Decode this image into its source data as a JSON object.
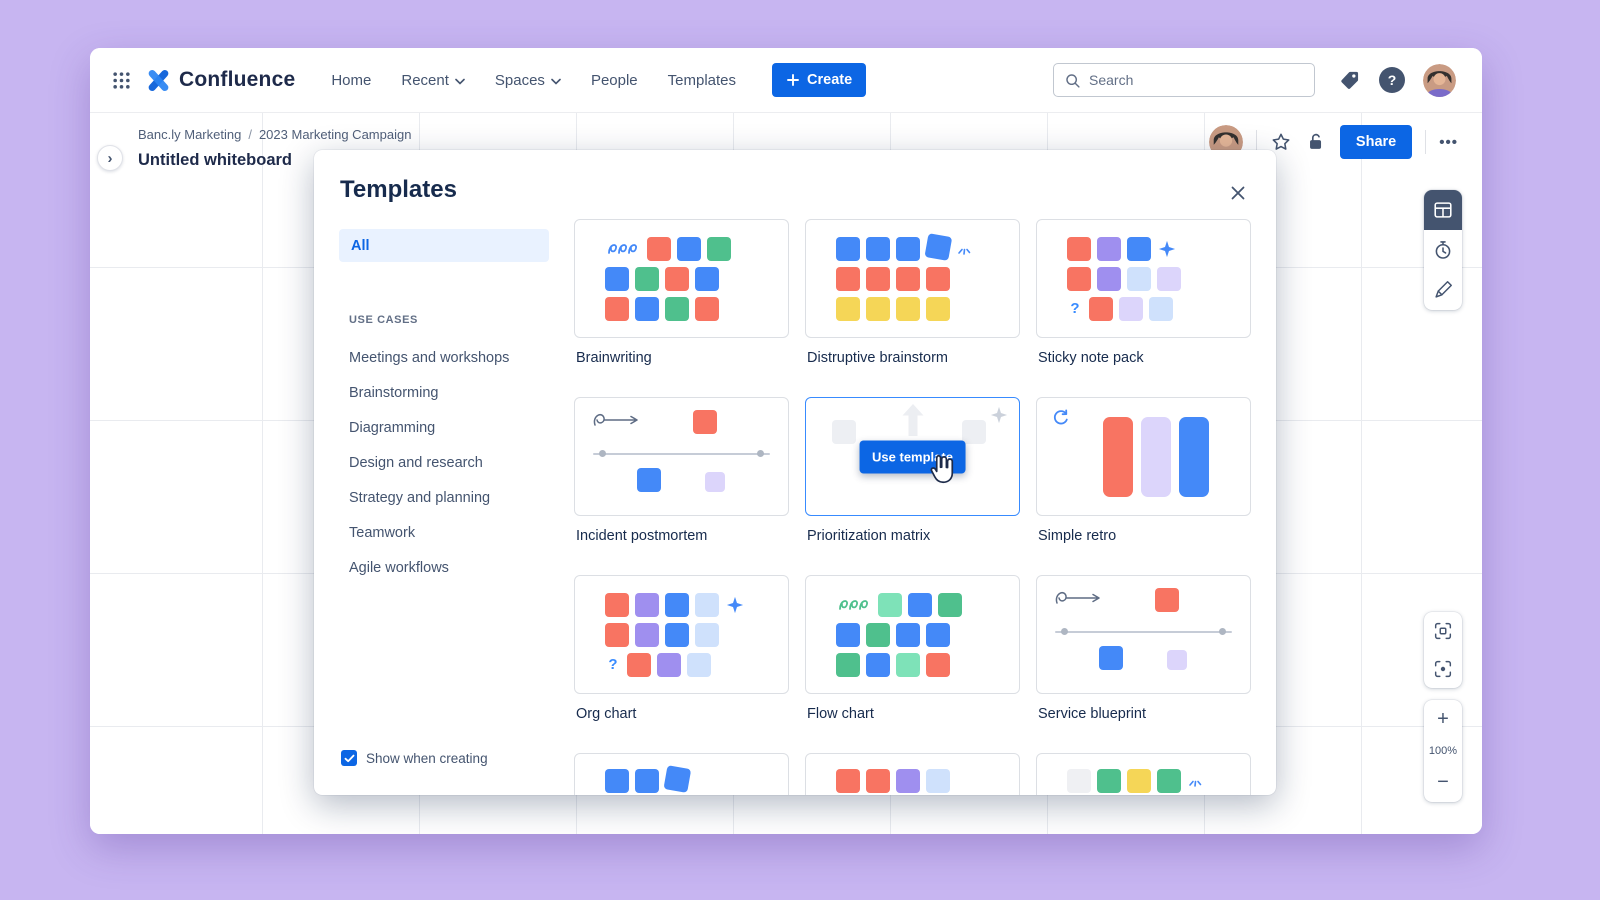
{
  "palette": {
    "o": "#F87462",
    "b": "#4489F8",
    "g": "#4FC08D",
    "G": "#7EE2B8",
    "y": "#F5D657",
    "p": "#9F8FEF",
    "l": "#DCD5FB",
    "c": "#CFE1FC",
    "x": "#EFF0F3"
  },
  "icons": {
    "help": "?",
    "more": "•••",
    "expand": "›",
    "zoom_in": "+",
    "zoom_out": "−"
  },
  "topnav": {
    "brand": "Confluence",
    "items": [
      {
        "label": "Home",
        "chevron": false
      },
      {
        "label": "Recent",
        "chevron": true
      },
      {
        "label": "Spaces",
        "chevron": true
      },
      {
        "label": "People",
        "chevron": false
      },
      {
        "label": "Templates",
        "chevron": false
      }
    ],
    "create_label": "Create",
    "search_placeholder": "Search"
  },
  "board": {
    "breadcrumb": [
      "Banc.ly Marketing",
      "2023 Marketing Campaign"
    ],
    "breadcrumb_separator": "/",
    "title": "Untitled whiteboard",
    "share_label": "Share",
    "zoom_level": "100%"
  },
  "modal": {
    "title": "Templates",
    "sidebar": {
      "all_label": "All",
      "section_label": "USE CASES",
      "items": [
        "Meetings and workshops",
        "Brainstorming",
        "Diagramming",
        "Design and research",
        "Strategy and planning",
        "Teamwork",
        "Agile workflows"
      ]
    },
    "show_when_creating": "Show when creating",
    "use_template_label": "Use template",
    "templates": [
      {
        "name": "Brainwriting",
        "thumb": {
          "kind": "grid",
          "rows": [
            [
              "s",
              "o",
              "b",
              "g"
            ],
            [
              "b",
              "g",
              "o",
              "b"
            ],
            [
              "o",
              "b",
              "g",
              "o"
            ]
          ]
        }
      },
      {
        "name": "Distruptive brainstorm",
        "thumb": {
          "kind": "grid",
          "rows": [
            [
              "b",
              "b",
              "b",
              "b~",
              "bu"
            ],
            [
              "o",
              "o",
              "o",
              "o"
            ],
            [
              "y",
              "y",
              "y",
              "y"
            ]
          ]
        }
      },
      {
        "name": "Sticky note pack",
        "thumb": {
          "kind": "grid",
          "rows": [
            [
              "o",
              "p",
              "b",
              "sp"
            ],
            [
              "o",
              "p",
              "c",
              "l"
            ],
            [
              "q",
              "o",
              "l",
              "c"
            ]
          ]
        }
      },
      {
        "name": "Incident postmortem",
        "thumb": {
          "kind": "timeline"
        }
      },
      {
        "name": "Prioritization matrix",
        "hover": true,
        "thumb": {
          "kind": "hover"
        }
      },
      {
        "name": "Simple retro",
        "thumb": {
          "kind": "retro"
        }
      },
      {
        "name": "Org chart",
        "thumb": {
          "kind": "grid",
          "rows": [
            [
              "o",
              "p",
              "b",
              "c",
              "sp"
            ],
            [
              "o",
              "p",
              "b",
              "c"
            ],
            [
              "q",
              "o",
              "p",
              "c"
            ]
          ]
        }
      },
      {
        "name": "Flow chart",
        "thumb": {
          "kind": "grid",
          "rows": [
            [
              "s2",
              "G",
              "b",
              "g"
            ],
            [
              "b",
              "g",
              "b",
              "b"
            ],
            [
              "g",
              "b",
              "G",
              "o"
            ]
          ]
        }
      },
      {
        "name": "Service blueprint",
        "thumb": {
          "kind": "timeline"
        }
      }
    ],
    "partial_templates": [
      {
        "thumb": {
          "kind": "grid",
          "rows": [
            [
              "b",
              "b",
              "b~"
            ]
          ]
        }
      },
      {
        "thumb": {
          "kind": "grid",
          "rows": [
            [
              "o",
              "o",
              "p",
              "c"
            ]
          ]
        }
      },
      {
        "thumb": {
          "kind": "grid",
          "rows": [
            [
              "x",
              "g",
              "y",
              "g",
              "bu"
            ]
          ]
        }
      }
    ]
  }
}
